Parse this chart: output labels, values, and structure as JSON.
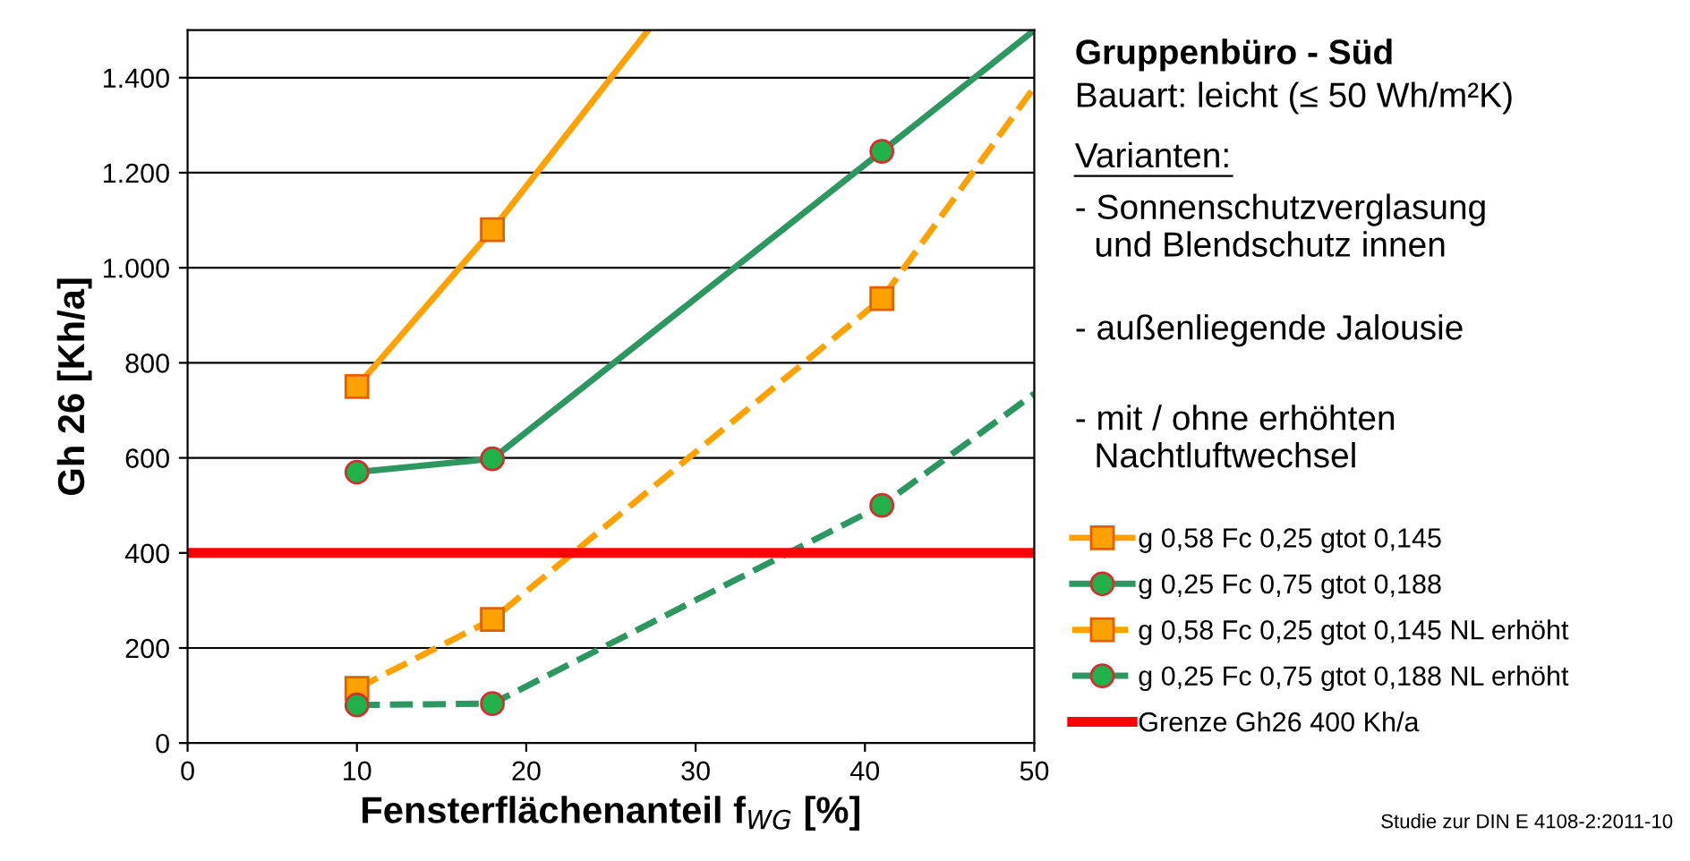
{
  "chart_data": {
    "type": "line",
    "title": "Gruppenbüro - Süd",
    "subtitle": "Bauart: leicht (≤ 50 Wh/m²K)",
    "xlabel": "Fensterflächenanteil f$_{WG}$ [%]",
    "ylabel": "Gh 26 [Kh/a]",
    "annotations": [
      "Varianten:",
      "- Sonnenschutzverglasung\n  und Blendschutz innen",
      "- außenliegende Jalousie",
      "- mit / ohne erhöhten\n  Nachtluftwechsel",
      "Studie zur DIN E 4108-2:2011-10"
    ],
    "series": [
      {
        "name": "g 0,58 Fc 0,25 gtot 0,145",
        "color": "#ffa200",
        "x": [
          10,
          18,
          27.2
        ],
        "values": [
          750,
          1080,
          1500
        ],
        "marker": "square",
        "line_style": "solid"
      },
      {
        "name": "g 0,25 Fc 0,75 gtot 0,188",
        "color": "#2e9660",
        "x": [
          10,
          18,
          41,
          50
        ],
        "values": [
          570,
          598,
          1245,
          1500
        ],
        "marker": "circle",
        "line_style": "solid"
      },
      {
        "name": "g 0,58 Fc 0,25 gtot 0,145 NL erhöht",
        "color": "#ffa200",
        "x": [
          10,
          18,
          41,
          50
        ],
        "values": [
          115,
          260,
          935,
          1380
        ],
        "marker": "square",
        "line_style": "dashed"
      },
      {
        "name": "g 0,25 Fc 0,75 gtot 0,188 NL erhöht",
        "color": "#2e9660",
        "x": [
          10,
          18,
          41,
          50
        ],
        "values": [
          80,
          83,
          500,
          735
        ],
        "marker": "circle",
        "line_style": "dashed"
      }
    ],
    "ref_lines": [
      {
        "axis": "y",
        "value": 400,
        "label": "Grenze Gh26 400 Kh/a",
        "color": "#ff0000"
      }
    ],
    "xlim": [
      0,
      50
    ],
    "ylim": [
      0,
      1500
    ],
    "xticks": [
      0,
      10,
      20,
      30,
      40,
      50
    ],
    "yticks": [
      0,
      200,
      400,
      600,
      800,
      {
        "value": 1000,
        "label": "1.000"
      },
      {
        "value": 1200,
        "label": "1.200"
      },
      {
        "value": 1400,
        "label": "1.400"
      }
    ],
    "grid": "y",
    "legend": "right"
  }
}
